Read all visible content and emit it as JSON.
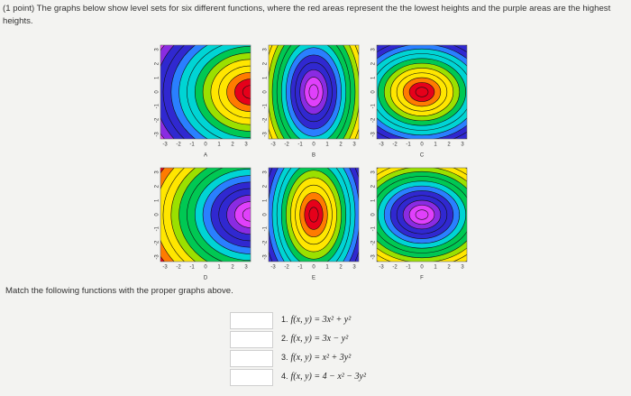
{
  "header": {
    "text": "(1 point) The graphs below show level sets for six different functions, where the red areas represent the the lowest heights and the purple areas are the highest heights."
  },
  "graphs": [
    {
      "label": "A"
    },
    {
      "label": "B"
    },
    {
      "label": "C"
    },
    {
      "label": "D"
    },
    {
      "label": "E"
    },
    {
      "label": "F"
    }
  ],
  "axis_ticks": [
    "-3",
    "-2",
    "-1",
    "0",
    "1",
    "2",
    "3"
  ],
  "instruction": "Match the following functions with the proper graphs above.",
  "functions": [
    {
      "number": "1.",
      "formula": "f(x, y) = 3x² + y²"
    },
    {
      "number": "2.",
      "formula": "f(x, y) = 3x − y²"
    },
    {
      "number": "3.",
      "formula": "f(x, y) = x² + 3y²"
    },
    {
      "number": "4.",
      "formula": "f(x, y) = 4 − x² − 3y²"
    }
  ]
}
